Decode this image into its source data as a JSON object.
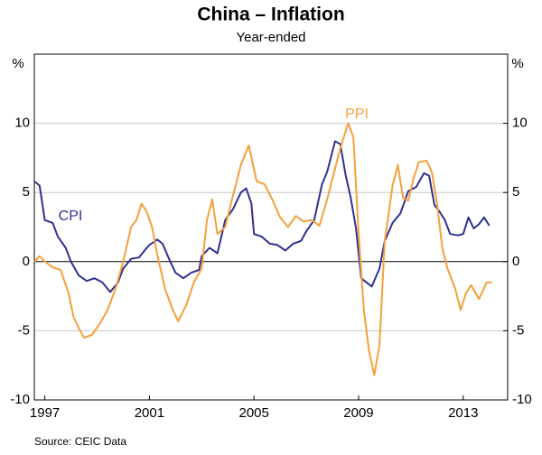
{
  "chart_data": {
    "type": "line",
    "title": "China – Inflation",
    "subtitle": "Year-ended",
    "ylabel": "%",
    "y2label": "%",
    "source": "Source: CEIC Data",
    "xlim": [
      1996.6,
      2014.7
    ],
    "xticks": [
      1997,
      2001,
      2005,
      2009,
      2013
    ],
    "ylim": [
      -10,
      15
    ],
    "yticks": [
      -10,
      -5,
      0,
      5,
      10
    ],
    "y2lim": [
      -10,
      15
    ],
    "y2ticks": [
      -10,
      -5,
      0,
      5,
      10
    ],
    "grid": true,
    "series": [
      {
        "name": "CPI",
        "color": "#2e3192",
        "x": [
          1996.6,
          1996.8,
          1997.0,
          1997.3,
          1997.5,
          1997.8,
          1998.0,
          1998.3,
          1998.6,
          1998.9,
          1999.2,
          1999.5,
          1999.8,
          2000.0,
          2000.3,
          2000.6,
          2000.9,
          2001.0,
          2001.3,
          2001.5,
          2001.8,
          2002.0,
          2002.3,
          2002.6,
          2002.9,
          2003.0,
          2003.3,
          2003.6,
          2003.9,
          2004.2,
          2004.5,
          2004.7,
          2004.9,
          2005.0,
          2005.3,
          2005.6,
          2005.9,
          2006.2,
          2006.5,
          2006.8,
          2007.0,
          2007.3,
          2007.6,
          2007.8,
          2008.1,
          2008.3,
          2008.5,
          2008.7,
          2008.9,
          2009.1,
          2009.3,
          2009.5,
          2009.8,
          2010.0,
          2010.3,
          2010.6,
          2010.9,
          2011.2,
          2011.5,
          2011.7,
          2011.9,
          2012.1,
          2012.3,
          2012.5,
          2012.8,
          2013.0,
          2013.2,
          2013.4,
          2013.6,
          2013.8,
          2014.0
        ],
        "values": [
          5.8,
          5.5,
          3.0,
          2.8,
          1.8,
          1.0,
          0.0,
          -1.0,
          -1.4,
          -1.2,
          -1.5,
          -2.2,
          -1.5,
          -0.5,
          0.2,
          0.3,
          1.0,
          1.2,
          1.6,
          1.3,
          0.0,
          -0.8,
          -1.2,
          -0.8,
          -0.6,
          0.4,
          1.0,
          0.6,
          3.0,
          3.8,
          5.0,
          5.3,
          4.2,
          2.0,
          1.8,
          1.3,
          1.2,
          0.8,
          1.3,
          1.5,
          2.2,
          3.0,
          5.6,
          6.5,
          8.7,
          8.5,
          6.3,
          4.6,
          2.4,
          -1.2,
          -1.5,
          -1.8,
          -0.5,
          1.5,
          2.8,
          3.5,
          5.1,
          5.4,
          6.4,
          6.2,
          4.1,
          3.6,
          3.0,
          2.0,
          1.9,
          2.0,
          3.2,
          2.4,
          2.7,
          3.2,
          2.6
        ]
      },
      {
        "name": "PPI",
        "color": "#f5a03a",
        "x": [
          1996.6,
          1996.8,
          1997.0,
          1997.3,
          1997.6,
          1997.9,
          1998.1,
          1998.3,
          1998.5,
          1998.8,
          1999.1,
          1999.4,
          1999.7,
          2000.0,
          2000.3,
          2000.5,
          2000.7,
          2000.9,
          2001.1,
          2001.3,
          2001.6,
          2001.9,
          2002.1,
          2002.4,
          2002.7,
          2003.0,
          2003.2,
          2003.4,
          2003.6,
          2003.9,
          2004.2,
          2004.5,
          2004.8,
          2005.1,
          2005.4,
          2005.7,
          2006.0,
          2006.3,
          2006.6,
          2006.9,
          2007.2,
          2007.5,
          2007.8,
          2008.0,
          2008.3,
          2008.6,
          2008.8,
          2009.0,
          2009.2,
          2009.4,
          2009.6,
          2009.8,
          2010.0,
          2010.3,
          2010.5,
          2010.7,
          2010.9,
          2011.1,
          2011.3,
          2011.6,
          2011.8,
          2012.0,
          2012.2,
          2012.4,
          2012.7,
          2012.9,
          2013.1,
          2013.3,
          2013.6,
          2013.9,
          2014.1
        ],
        "values": [
          0.0,
          0.4,
          0.0,
          -0.4,
          -0.6,
          -2.2,
          -4.0,
          -4.8,
          -5.5,
          -5.3,
          -4.5,
          -3.5,
          -2.0,
          0.0,
          2.5,
          3.0,
          4.2,
          3.6,
          2.5,
          0.5,
          -2.0,
          -3.5,
          -4.3,
          -3.2,
          -1.5,
          -0.5,
          3.0,
          4.5,
          2.0,
          2.5,
          4.8,
          7.0,
          8.4,
          5.8,
          5.6,
          4.5,
          3.2,
          2.5,
          3.3,
          2.9,
          3.0,
          2.6,
          4.5,
          6.0,
          8.2,
          10.0,
          9.0,
          2.0,
          -3.5,
          -6.5,
          -8.2,
          -6.0,
          1.5,
          5.5,
          7.0,
          4.6,
          4.4,
          6.0,
          7.2,
          7.3,
          6.5,
          4.2,
          1.0,
          -0.5,
          -2.0,
          -3.5,
          -2.3,
          -1.7,
          -2.7,
          -1.5,
          -1.5
        ]
      }
    ]
  }
}
